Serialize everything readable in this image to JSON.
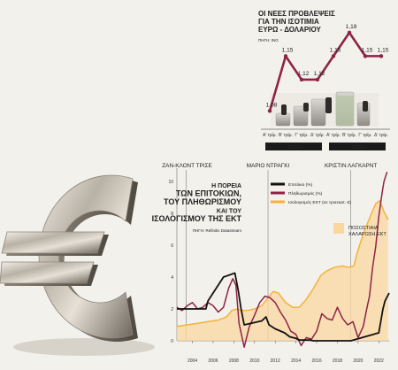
{
  "chart_data": [
    {
      "type": "line",
      "title": "ΟΙ ΝΕΕΣ ΠΡΟΒΛΕΨΕΙΣ ΓΙΑ ΤΗΝ ΙΣΟΤΙΜΙΑ ΕΥΡΩ - ΔΟΛΑΡΙΟΥ",
      "source": "ΠΗΓΗ: ING",
      "categories": [
        "Α' τρίμ.",
        "Β' τρίμ.",
        "Γ' τρίμ.",
        "Δ' τρίμ.",
        "Α' τρίμ.",
        "Β' τρίμ.",
        "Γ' τρίμ.",
        "Δ' τρίμ."
      ],
      "values": [
        1.08,
        1.15,
        1.12,
        1.12,
        1.15,
        1.18,
        1.15,
        1.15
      ],
      "value_labels": [
        "1,08",
        "1,15",
        "1,12",
        "1,12",
        "1,15",
        "1,18",
        "1,15",
        "1,15"
      ],
      "years": [
        "2023",
        "2024"
      ],
      "ylim": [
        1.06,
        1.19
      ],
      "color": "#8e2346"
    },
    {
      "type": "line",
      "title_lines": [
        "Η ΠΟΡΕΙΑ",
        "ΤΩΝ ΕΠΙΤΟΚΙΩΝ,",
        "ΤΟΥ ΠΛΗΘΩΡΙΣΜΟΥ",
        "ΚΑΙ ΤΟΥ",
        "ΙΣΟΛΟΓΙΣΜΟΥ ΤΗΣ ΕΚΤ"
      ],
      "source": "ΠΗΓΗ: Refinitiv Datastream",
      "x_ticks": [
        "2004",
        "2006",
        "2008",
        "2010",
        "2012",
        "2014",
        "2016",
        "2018",
        "2020",
        "2022"
      ],
      "y_ticks": [
        "0",
        "2",
        "4",
        "6",
        "8",
        "10"
      ],
      "ylim": [
        0,
        10.5
      ],
      "xlim": [
        2003,
        2023.5
      ],
      "annotations": [
        {
          "label": "ΖΑΝ-ΚΛΟΝΤ ΤΡΙΣΕ",
          "x": 2003.9
        },
        {
          "label": "ΜΑΡΙΟ ΝΤΡΑΓΚΙ",
          "x": 2011.8
        },
        {
          "label": "ΚΡΙΣΤΙΝ ΛΑΓΚΑΡΝΤ",
          "x": 2019.8
        }
      ],
      "legend": {
        "position": "right",
        "entries": [
          {
            "label": "Επιτόκιο (%)",
            "color": "#111111"
          },
          {
            "label": "Πληθωρισμός (%)",
            "color": "#8e2346"
          },
          {
            "label": "Ισολογισμός ΕΚΤ (σε τρισεκατ. €)",
            "color": "#f4b23a"
          }
        ],
        "area_label": [
          "ΠΟΣΟΣΤΙΑΙΑ",
          "ΧΑΛΑΡΩΣΗ ΕΚΤ"
        ],
        "area_color": "#fbd7a0"
      },
      "series": [
        {
          "name": "Επιτόκιο (%)",
          "color": "#111111",
          "x": [
            2003.0,
            2005.8,
            2006.0,
            2006.5,
            2007.0,
            2007.5,
            2008.6,
            2008.9,
            2009.2,
            2009.5,
            2011.2,
            2011.6,
            2011.9,
            2012.5,
            2013.4,
            2013.9,
            2014.5,
            2014.8,
            2015.8,
            2016.2,
            2019.8,
            2022.5,
            2022.7,
            2022.9,
            2023.1,
            2023.5
          ],
          "values": [
            2.0,
            2.0,
            2.5,
            3.0,
            3.5,
            4.0,
            4.25,
            3.25,
            2.0,
            1.0,
            1.25,
            1.5,
            1.0,
            0.75,
            0.5,
            0.25,
            0.15,
            0.05,
            0.05,
            0.0,
            0.0,
            0.5,
            1.25,
            2.0,
            2.5,
            3.0
          ]
        },
        {
          "name": "Πληθωρισμός (%)",
          "color": "#8e2346",
          "x": [
            2003.0,
            2003.5,
            2004.0,
            2004.5,
            2005.0,
            2005.5,
            2006.0,
            2006.5,
            2007.0,
            2007.5,
            2008.0,
            2008.4,
            2008.7,
            2009.0,
            2009.5,
            2010.0,
            2010.5,
            2011.0,
            2011.5,
            2012.0,
            2012.5,
            2013.0,
            2013.5,
            2014.0,
            2014.5,
            2015.0,
            2015.5,
            2016.0,
            2016.5,
            2017.0,
            2017.5,
            2018.0,
            2018.5,
            2019.0,
            2019.5,
            2020.0,
            2020.5,
            2021.0,
            2021.3,
            2021.6,
            2021.9,
            2022.2,
            2022.5,
            2022.8,
            2023.0,
            2023.3
          ],
          "values": [
            2.1,
            1.9,
            2.2,
            2.4,
            2.0,
            2.1,
            2.4,
            2.2,
            1.8,
            2.1,
            3.3,
            3.9,
            3.5,
            1.1,
            -0.4,
            0.9,
            1.6,
            2.4,
            2.8,
            2.7,
            2.4,
            1.8,
            1.3,
            0.6,
            0.4,
            -0.3,
            0.2,
            0.1,
            0.6,
            1.7,
            1.4,
            1.3,
            2.1,
            1.4,
            1.0,
            1.2,
            0.2,
            0.9,
            1.9,
            2.8,
            4.6,
            5.9,
            7.8,
            9.2,
            10.0,
            10.6
          ]
        },
        {
          "name": "Ισολογισμός ΕΚΤ (σε τρισεκατ. €)",
          "color": "#f4b23a",
          "x": [
            2003.0,
            2004.0,
            2005.0,
            2006.0,
            2007.0,
            2007.8,
            2008.3,
            2008.8,
            2009.2,
            2009.8,
            2010.5,
            2011.2,
            2011.8,
            2012.3,
            2012.8,
            2013.5,
            2014.2,
            2014.8,
            2015.5,
            2016.2,
            2016.9,
            2017.5,
            2018.2,
            2019.0,
            2019.6,
            2020.1,
            2020.4,
            2020.8,
            2021.3,
            2021.8,
            2022.2,
            2022.6,
            2023.0,
            2023.4
          ],
          "values": [
            0.9,
            1.0,
            1.1,
            1.2,
            1.3,
            1.5,
            1.9,
            2.0,
            1.9,
            1.9,
            2.0,
            2.2,
            2.7,
            3.1,
            3.0,
            2.4,
            2.1,
            2.1,
            2.6,
            3.3,
            4.1,
            4.4,
            4.6,
            4.7,
            4.6,
            4.7,
            5.5,
            6.3,
            7.2,
            8.0,
            8.6,
            8.8,
            8.1,
            7.6
          ]
        }
      ]
    }
  ]
}
